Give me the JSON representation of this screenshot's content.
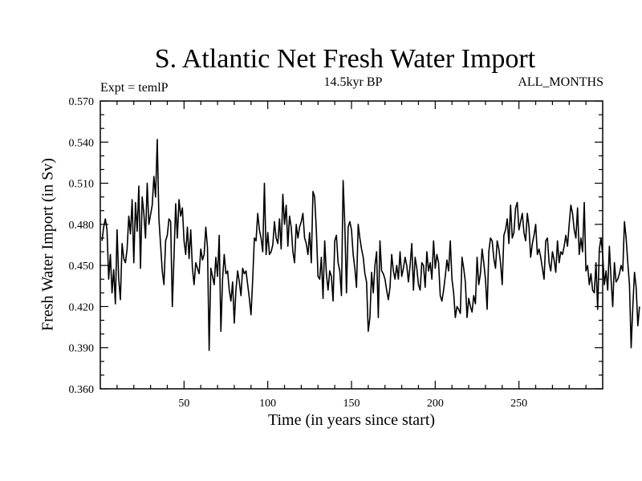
{
  "chart_data": {
    "type": "line",
    "title": "S. Atlantic Net Fresh Water Import",
    "subtitle": "14.5kyr BP",
    "experiment_label": "Expt = temlP",
    "period_label": "ALL_MONTHS",
    "xlabel": "Time (in years since start)",
    "ylabel": "Fresh Water Import (in Sv)",
    "xlim": [
      0,
      300
    ],
    "ylim": [
      0.36,
      0.57
    ],
    "xticks": [
      50,
      100,
      150,
      200,
      250
    ],
    "yticks": [
      0.36,
      0.39,
      0.42,
      0.45,
      0.48,
      0.51,
      0.54,
      0.57
    ],
    "ytick_labels": [
      "0.360",
      "0.390",
      "0.420",
      "0.450",
      "0.480",
      "0.510",
      "0.540",
      "0.570"
    ],
    "series": [
      {
        "name": "Net Fresh Water Import",
        "x_start": 1,
        "x_step": 1,
        "values": [
          0.468,
          0.478,
          0.484,
          0.476,
          0.44,
          0.458,
          0.43,
          0.447,
          0.422,
          0.476,
          0.44,
          0.425,
          0.466,
          0.455,
          0.452,
          0.462,
          0.486,
          0.473,
          0.498,
          0.452,
          0.496,
          0.475,
          0.508,
          0.448,
          0.5,
          0.488,
          0.47,
          0.51,
          0.48,
          0.487,
          0.494,
          0.515,
          0.5,
          0.542,
          0.484,
          0.465,
          0.446,
          0.436,
          0.468,
          0.472,
          0.484,
          0.482,
          0.42,
          0.456,
          0.495,
          0.47,
          0.498,
          0.486,
          0.492,
          0.468,
          0.458,
          0.478,
          0.455,
          0.476,
          0.448,
          0.436,
          0.452,
          0.448,
          0.444,
          0.462,
          0.454,
          0.458,
          0.478,
          0.463,
          0.388,
          0.448,
          0.442,
          0.436,
          0.456,
          0.442,
          0.472,
          0.402,
          0.44,
          0.458,
          0.444,
          0.446,
          0.432,
          0.424,
          0.438,
          0.408,
          0.432,
          0.446,
          0.438,
          0.428,
          0.448,
          0.444,
          0.446,
          0.436,
          0.426,
          0.414,
          0.44,
          0.47,
          0.468,
          0.488,
          0.476,
          0.47,
          0.46,
          0.51,
          0.458,
          0.474,
          0.458,
          0.46,
          0.465,
          0.482,
          0.47,
          0.466,
          0.484,
          0.462,
          0.502,
          0.48,
          0.494,
          0.464,
          0.486,
          0.478,
          0.46,
          0.452,
          0.48,
          0.47,
          0.478,
          0.482,
          0.488,
          0.47,
          0.466,
          0.458,
          0.474,
          0.452,
          0.504,
          0.5,
          0.476,
          0.442,
          0.44,
          0.456,
          0.426,
          0.468,
          0.444,
          0.432,
          0.446,
          0.442,
          0.424,
          0.468,
          0.472,
          0.452,
          0.446,
          0.428,
          0.512,
          0.48,
          0.43,
          0.478,
          0.482,
          0.476,
          0.458,
          0.448,
          0.434,
          0.48,
          0.47,
          0.462,
          0.456,
          0.444,
          0.438,
          0.402,
          0.412,
          0.445,
          0.43,
          0.45,
          0.46,
          0.412,
          0.468,
          0.446,
          0.444,
          0.44,
          0.432,
          0.425,
          0.434,
          0.458,
          0.446,
          0.44,
          0.45,
          0.44,
          0.46,
          0.442,
          0.448,
          0.456,
          0.45,
          0.438,
          0.45,
          0.466,
          0.432,
          0.456,
          0.448,
          0.436,
          0.432,
          0.452,
          0.45,
          0.434,
          0.46,
          0.446,
          0.452,
          0.44,
          0.468,
          0.448,
          0.458,
          0.452,
          0.428,
          0.424,
          0.432,
          0.442,
          0.454,
          0.446,
          0.468,
          0.44,
          0.43,
          0.412,
          0.42,
          0.418,
          0.415,
          0.456,
          0.448,
          0.438,
          0.412,
          0.426,
          0.42,
          0.416,
          0.428,
          0.422,
          0.456,
          0.436,
          0.444,
          0.462,
          0.452,
          0.44,
          0.418,
          0.46,
          0.47,
          0.468,
          0.455,
          0.448,
          0.468,
          0.462,
          0.452,
          0.436,
          0.472,
          0.476,
          0.484,
          0.466,
          0.494,
          0.47,
          0.474,
          0.492,
          0.496,
          0.476,
          0.482,
          0.488,
          0.474,
          0.468,
          0.488,
          0.478,
          0.456,
          0.466,
          0.472,
          0.48,
          0.458,
          0.462,
          0.456,
          0.448,
          0.44,
          0.468,
          0.47,
          0.452,
          0.446,
          0.46,
          0.454,
          0.445,
          0.468,
          0.452,
          0.46,
          0.458,
          0.464,
          0.472,
          0.464,
          0.48,
          0.494,
          0.488,
          0.476,
          0.47,
          0.492,
          0.458,
          0.47,
          0.46,
          0.496,
          0.446,
          0.45,
          0.436,
          0.444,
          0.432,
          0.43,
          0.452,
          0.418,
          0.462,
          0.47,
          0.458,
          0.436,
          0.446,
          0.432,
          0.464,
          0.44,
          0.42,
          0.452,
          0.438,
          0.44,
          0.444,
          0.45,
          0.446,
          0.482,
          0.47,
          0.452,
          0.436,
          0.39,
          0.42,
          0.445,
          0.434,
          0.406,
          0.42
        ]
      }
    ]
  }
}
